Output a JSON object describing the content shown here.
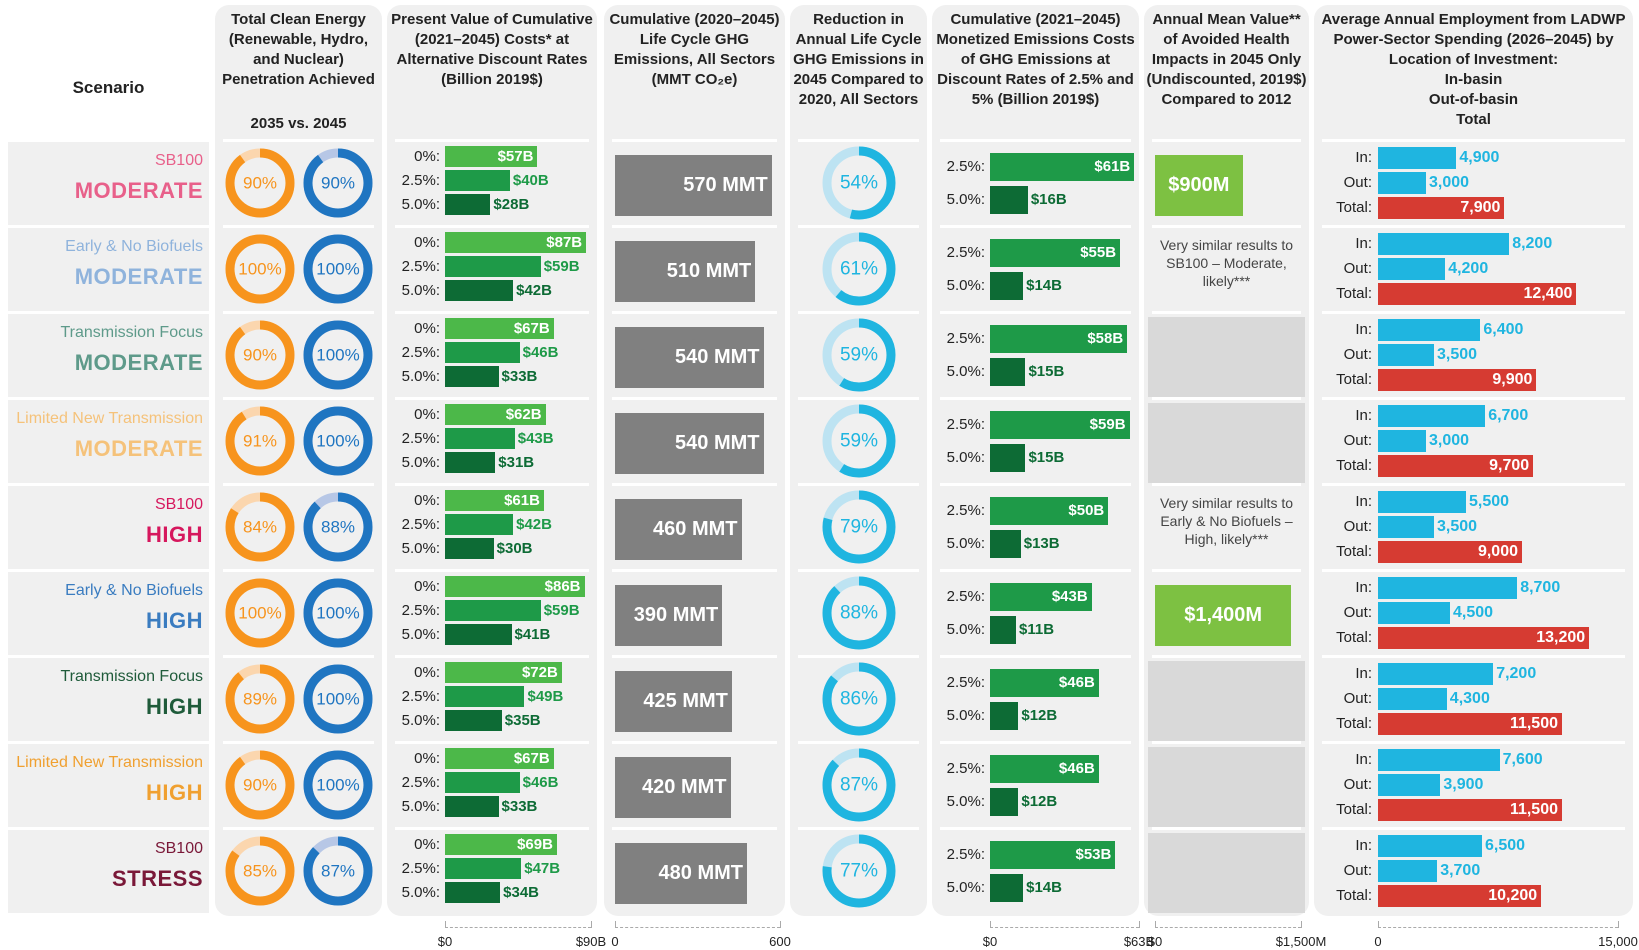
{
  "header": {
    "scenario": "Scenario",
    "columns": [
      "Total Clean Energy (Renewable, Hydro, and Nuclear) Penetration Achieved",
      "Present Value of Cumulative (2021–2045) Costs* at Alternative Discount Rates (Billion 2019$)",
      "Cumulative (2020–2045) Life Cycle GHG Emissions, All Sectors (MMT CO₂e)",
      "Reduction in Annual Life Cycle GHG Emissions in 2045 Compared to 2020, All Sectors",
      "Cumulative (2021–2045) Monetized Emissions Costs of GHG Emissions at Discount Rates of 2.5% and 5% (Billion 2019$)",
      "Annual Mean Value** of Avoided Health Impacts in 2045 Only (Undiscounted, 2019$) Compared to 2012",
      "Average Annual Employment from LADWP Power-Sector Spending (2026–2045) by Location of Investment:"
    ],
    "clean_energy_sub": "2035 vs. 2045",
    "employment_lines": [
      "In-basin",
      "Out-of-basin",
      "Total"
    ]
  },
  "axes": {
    "costs": {
      "xlim": [
        0,
        90
      ],
      "xticks": [
        {
          "value": 0,
          "label": "$0"
        },
        {
          "value": 90,
          "label": "$90B"
        }
      ]
    },
    "ghg": {
      "xlim": [
        0,
        600
      ],
      "xticks": [
        0,
        600
      ]
    },
    "monetized": {
      "xlim": [
        0,
        63
      ],
      "xticks": [
        {
          "value": 0,
          "label": "$0"
        },
        {
          "value": 63,
          "label": "$63B"
        }
      ]
    },
    "health": {
      "xlim": [
        0,
        1500
      ],
      "xticks": [
        {
          "value": 0,
          "label": "$0"
        },
        {
          "value": 1500,
          "label": "$1,500M"
        }
      ]
    },
    "employment": {
      "xlim": [
        0,
        15000
      ],
      "xticks": [
        0,
        {
          "value": 15000,
          "label": "15,000"
        }
      ]
    }
  },
  "cost_rate_labels": [
    "0%:",
    "2.5%:",
    "5.0%:"
  ],
  "monetized_rate_labels": [
    "2.5%:",
    "5.0%:"
  ],
  "employment_labels": [
    "In:",
    "Out:",
    "Total:"
  ],
  "colors": {
    "clean_2035": "#f7941d",
    "clean_2035_track": "#fbd6ae",
    "clean_2045": "#1f75c1",
    "clean_2045_track": "#b7c7e6",
    "costs": [
      "#4cb849",
      "#1e9a48",
      "#0d6b35"
    ],
    "ghg": "#808080",
    "reduction": "#1fb5e0",
    "reduction_track": "#bde3f2",
    "monetized": [
      "#1e9a48",
      "#0d6b35"
    ],
    "health": "#7dc142",
    "employment": [
      "#1fb5e0",
      "#1fb5e0",
      "#d63b32"
    ]
  },
  "scenarios": [
    {
      "name": "SB100",
      "level": "MODERATE",
      "color": "#e8608a",
      "clean_energy": {
        "values": [
          90,
          90
        ],
        "value_labels": [
          "90%",
          "90%"
        ]
      },
      "costs": {
        "values": [
          57,
          40,
          28
        ],
        "value_labels": [
          "$57B",
          "$40B",
          "$28B"
        ]
      },
      "ghg": {
        "value": 570,
        "value_label": "570 MMT"
      },
      "reduction": {
        "value": 54,
        "value_label": "54%"
      },
      "monetized": {
        "values": [
          61,
          16
        ],
        "value_labels": [
          "$61B",
          "$16B"
        ]
      },
      "health": {
        "value": 900,
        "value_label": "$900M"
      },
      "employment": {
        "values": [
          4900,
          3000,
          7900
        ],
        "value_labels": [
          "4,900",
          "3,000",
          "7,900"
        ]
      }
    },
    {
      "name": "Early & No Biofuels",
      "level": "MODERATE",
      "color": "#8fb3dc",
      "clean_energy": {
        "values": [
          100,
          100
        ],
        "value_labels": [
          "100%",
          "100%"
        ]
      },
      "costs": {
        "values": [
          87,
          59,
          42
        ],
        "value_labels": [
          "$87B",
          "$59B",
          "$42B"
        ]
      },
      "ghg": {
        "value": 510,
        "value_label": "510 MMT"
      },
      "reduction": {
        "value": 61,
        "value_label": "61%"
      },
      "monetized": {
        "values": [
          55,
          14
        ],
        "value_labels": [
          "$55B",
          "$14B"
        ]
      },
      "health": {
        "note": "Very similar results to SB100 – Moderate, likely***"
      },
      "employment": {
        "values": [
          8200,
          4200,
          12400
        ],
        "value_labels": [
          "8,200",
          "4,200",
          "12,400"
        ]
      }
    },
    {
      "name": "Transmission Focus",
      "level": "MODERATE",
      "color": "#5e9a8a",
      "clean_energy": {
        "values": [
          90,
          100
        ],
        "value_labels": [
          "90%",
          "100%"
        ]
      },
      "costs": {
        "values": [
          67,
          46,
          33
        ],
        "value_labels": [
          "$67B",
          "$46B",
          "$33B"
        ]
      },
      "ghg": {
        "value": 540,
        "value_label": "540 MMT"
      },
      "reduction": {
        "value": 59,
        "value_label": "59%"
      },
      "monetized": {
        "values": [
          58,
          15
        ],
        "value_labels": [
          "$58B",
          "$15B"
        ]
      },
      "employment": {
        "values": [
          6400,
          3500,
          9900
        ],
        "value_labels": [
          "6,400",
          "3,500",
          "9,900"
        ]
      }
    },
    {
      "name": "Limited New Transmission",
      "level": "MODERATE",
      "color": "#f5c27a",
      "clean_energy": {
        "values": [
          91,
          100
        ],
        "value_labels": [
          "91%",
          "100%"
        ]
      },
      "costs": {
        "values": [
          62,
          43,
          31
        ],
        "value_labels": [
          "$62B",
          "$43B",
          "$31B"
        ]
      },
      "ghg": {
        "value": 540,
        "value_label": "540 MMT"
      },
      "reduction": {
        "value": 59,
        "value_label": "59%"
      },
      "monetized": {
        "values": [
          59,
          15
        ],
        "value_labels": [
          "$59B",
          "$15B"
        ]
      },
      "employment": {
        "values": [
          6700,
          3000,
          9700
        ],
        "value_labels": [
          "6,700",
          "3,000",
          "9,700"
        ]
      }
    },
    {
      "name": "SB100",
      "level": "HIGH",
      "color": "#d6175d",
      "clean_energy": {
        "values": [
          84,
          88
        ],
        "value_labels": [
          "84%",
          "88%"
        ]
      },
      "costs": {
        "values": [
          61,
          42,
          30
        ],
        "value_labels": [
          "$61B",
          "$42B",
          "$30B"
        ]
      },
      "ghg": {
        "value": 460,
        "value_label": "460 MMT"
      },
      "reduction": {
        "value": 79,
        "value_label": "79%"
      },
      "monetized": {
        "values": [
          50,
          13
        ],
        "value_labels": [
          "$50B",
          "$13B"
        ]
      },
      "health": {
        "note": "Very similar results to Early & No Biofuels – High, likely***"
      },
      "employment": {
        "values": [
          5500,
          3500,
          9000
        ],
        "value_labels": [
          "5,500",
          "3,500",
          "9,000"
        ]
      }
    },
    {
      "name": "Early & No Biofuels",
      "level": "HIGH",
      "color": "#3a7cc0",
      "clean_energy": {
        "values": [
          100,
          100
        ],
        "value_labels": [
          "100%",
          "100%"
        ]
      },
      "costs": {
        "values": [
          86,
          59,
          41
        ],
        "value_labels": [
          "$86B",
          "$59B",
          "$41B"
        ]
      },
      "ghg": {
        "value": 390,
        "value_label": "390 MMT"
      },
      "reduction": {
        "value": 88,
        "value_label": "88%"
      },
      "monetized": {
        "values": [
          43,
          11
        ],
        "value_labels": [
          "$43B",
          "$11B"
        ]
      },
      "health": {
        "value": 1400,
        "value_label": "$1,400M"
      },
      "employment": {
        "values": [
          8700,
          4500,
          13200
        ],
        "value_labels": [
          "8,700",
          "4,500",
          "13,200"
        ]
      }
    },
    {
      "name": "Transmission Focus",
      "level": "HIGH",
      "color": "#1f5b3a",
      "clean_energy": {
        "values": [
          89,
          100
        ],
        "value_labels": [
          "89%",
          "100%"
        ]
      },
      "costs": {
        "values": [
          72,
          49,
          35
        ],
        "value_labels": [
          "$72B",
          "$49B",
          "$35B"
        ]
      },
      "ghg": {
        "value": 425,
        "value_label": "425 MMT"
      },
      "reduction": {
        "value": 86,
        "value_label": "86%"
      },
      "monetized": {
        "values": [
          46,
          12
        ],
        "value_labels": [
          "$46B",
          "$12B"
        ]
      },
      "employment": {
        "values": [
          7200,
          4300,
          11500
        ],
        "value_labels": [
          "7,200",
          "4,300",
          "11,500"
        ]
      }
    },
    {
      "name": "Limited New Transmission",
      "level": "HIGH",
      "color": "#f0a030",
      "clean_energy": {
        "values": [
          90,
          100
        ],
        "value_labels": [
          "90%",
          "100%"
        ]
      },
      "costs": {
        "values": [
          67,
          46,
          33
        ],
        "value_labels": [
          "$67B",
          "$46B",
          "$33B"
        ]
      },
      "ghg": {
        "value": 420,
        "value_label": "420 MMT"
      },
      "reduction": {
        "value": 87,
        "value_label": "87%"
      },
      "monetized": {
        "values": [
          46,
          12
        ],
        "value_labels": [
          "$46B",
          "$12B"
        ]
      },
      "employment": {
        "values": [
          7600,
          3900,
          11500
        ],
        "value_labels": [
          "7,600",
          "3,900",
          "11,500"
        ]
      }
    },
    {
      "name": "SB100",
      "level": "STRESS",
      "color": "#7a1838",
      "clean_energy": {
        "values": [
          85,
          87
        ],
        "value_labels": [
          "85%",
          "87%"
        ]
      },
      "costs": {
        "values": [
          69,
          47,
          34
        ],
        "value_labels": [
          "$69B",
          "$47B",
          "$34B"
        ]
      },
      "ghg": {
        "value": 480,
        "value_label": "480 MMT"
      },
      "reduction": {
        "value": 77,
        "value_label": "77%"
      },
      "monetized": {
        "values": [
          53,
          14
        ],
        "value_labels": [
          "$53B",
          "$14B"
        ]
      },
      "employment": {
        "values": [
          6500,
          3700,
          10200
        ],
        "value_labels": [
          "6,500",
          "3,700",
          "10,200"
        ]
      }
    }
  ]
}
